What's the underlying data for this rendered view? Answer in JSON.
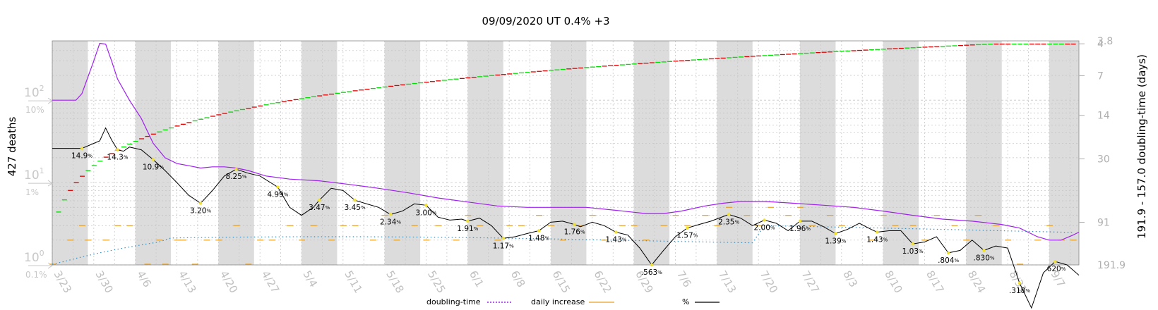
{
  "chart_data": {
    "type": "line",
    "title": "09/09/2020 UT 0.4% +3",
    "ylabel_left": "427 deaths",
    "ylabel_right": "191.9 - 157.0 doubling-time (days)",
    "left_ticks": [
      {
        "label": "10⁰",
        "value": 1
      },
      {
        "label": "10¹",
        "value": 10
      },
      {
        "label": "10²",
        "value": 100
      }
    ],
    "left_pct_ticks": [
      {
        "label": "0.1%",
        "value": 1
      },
      {
        "label": "1%",
        "value": 10
      },
      {
        "label": "10%",
        "value": 100
      }
    ],
    "right_ticks": [
      {
        "label": "3.8",
        "value": 3.8
      },
      {
        "label": "4",
        "value": 4
      },
      {
        "label": "7",
        "value": 7
      },
      {
        "label": "14",
        "value": 14
      },
      {
        "label": "30",
        "value": 30
      },
      {
        "label": "91",
        "value": 91
      },
      {
        "label": "191.9",
        "value": 191.9
      }
    ],
    "x_ticks": [
      "3/23",
      "3/30",
      "4/6",
      "4/13",
      "4/20",
      "4/27",
      "5/4",
      "5/11",
      "5/18",
      "5/25",
      "6/1",
      "6/8",
      "6/15",
      "6/22",
      "6/29",
      "7/6",
      "7/13",
      "7/20",
      "7/27",
      "8/3",
      "8/10",
      "8/17",
      "8/24",
      "8/31",
      "9/7"
    ],
    "pct_labels": [
      {
        "day": 5,
        "label": "14.9",
        "y": 26.0
      },
      {
        "day": 11,
        "label": "14.3",
        "y": 25.0
      },
      {
        "day": 17,
        "label": "10.9",
        "y": 19.0
      },
      {
        "day": 25,
        "label": "3.20",
        "y": 5.6
      },
      {
        "day": 31,
        "label": "8.25",
        "y": 14.5
      },
      {
        "day": 38,
        "label": "4.99",
        "y": 8.8
      },
      {
        "day": 45,
        "label": "3.47",
        "y": 6.1
      },
      {
        "day": 51,
        "label": "3.45",
        "y": 6.1
      },
      {
        "day": 57,
        "label": "2.34",
        "y": 4.1
      },
      {
        "day": 63,
        "label": "3.00",
        "y": 5.3
      },
      {
        "day": 70,
        "label": "1.91",
        "y": 3.4
      },
      {
        "day": 76,
        "label": "1.17",
        "y": 2.1
      },
      {
        "day": 82,
        "label": "1.48",
        "y": 2.6
      },
      {
        "day": 88,
        "label": "1.76",
        "y": 3.1
      },
      {
        "day": 95,
        "label": "1.43",
        "y": 2.5
      },
      {
        "day": 101,
        "label": ".563",
        "y": 1.0
      },
      {
        "day": 107,
        "label": "1.57",
        "y": 2.8
      },
      {
        "day": 114,
        "label": "2.35",
        "y": 4.1
      },
      {
        "day": 120,
        "label": "2.00",
        "y": 3.5
      },
      {
        "day": 126,
        "label": "1.96",
        "y": 3.4
      },
      {
        "day": 132,
        "label": "1.39",
        "y": 2.4
      },
      {
        "day": 139,
        "label": "1.43",
        "y": 2.5
      },
      {
        "day": 145,
        "label": "1.03",
        "y": 1.8
      },
      {
        "day": 151,
        "label": ".804",
        "y": 1.4
      },
      {
        "day": 157,
        "label": ".830",
        "y": 1.5
      },
      {
        "day": 163,
        "label": ".318",
        "y": 0.6
      },
      {
        "day": 169,
        "label": ".620",
        "y": 1.1
      }
    ],
    "pct_line": [
      [
        0,
        26
      ],
      [
        5,
        26
      ],
      [
        8,
        32
      ],
      [
        9,
        46
      ],
      [
        10,
        33
      ],
      [
        11,
        25
      ],
      [
        12,
        24
      ],
      [
        13,
        27
      ],
      [
        14,
        26
      ],
      [
        15,
        25
      ],
      [
        17,
        19
      ],
      [
        19,
        14
      ],
      [
        21,
        10
      ],
      [
        23,
        7
      ],
      [
        25,
        5.6
      ],
      [
        27,
        8
      ],
      [
        29,
        12
      ],
      [
        31,
        14.5
      ],
      [
        33,
        13
      ],
      [
        35,
        12
      ],
      [
        38,
        8.8
      ],
      [
        40,
        5
      ],
      [
        42,
        4
      ],
      [
        44,
        5
      ],
      [
        45,
        6.1
      ],
      [
        47,
        8.5
      ],
      [
        49,
        8
      ],
      [
        51,
        6.1
      ],
      [
        53,
        5.5
      ],
      [
        55,
        5
      ],
      [
        57,
        4.1
      ],
      [
        59,
        4.5
      ],
      [
        61,
        5.5
      ],
      [
        63,
        5.3
      ],
      [
        65,
        3.8
      ],
      [
        67,
        3.5
      ],
      [
        69,
        3.6
      ],
      [
        70,
        3.4
      ],
      [
        72,
        3.7
      ],
      [
        74,
        3.0
      ],
      [
        76,
        2.1
      ],
      [
        78,
        2.2
      ],
      [
        80,
        2.4
      ],
      [
        82,
        2.6
      ],
      [
        84,
        3.3
      ],
      [
        86,
        3.4
      ],
      [
        88,
        3.1
      ],
      [
        89,
        2.9
      ],
      [
        91,
        3.3
      ],
      [
        93,
        3.0
      ],
      [
        95,
        2.5
      ],
      [
        97,
        2.3
      ],
      [
        99,
        1.6
      ],
      [
        101,
        1.0
      ],
      [
        103,
        1.5
      ],
      [
        105,
        2.2
      ],
      [
        107,
        2.8
      ],
      [
        109,
        3.1
      ],
      [
        111,
        3.4
      ],
      [
        114,
        4.1
      ],
      [
        116,
        3.7
      ],
      [
        118,
        3.0
      ],
      [
        120,
        3.5
      ],
      [
        122,
        3.2
      ],
      [
        124,
        2.6
      ],
      [
        126,
        3.4
      ],
      [
        128,
        3.4
      ],
      [
        130,
        2.9
      ],
      [
        132,
        2.4
      ],
      [
        134,
        2.7
      ],
      [
        136,
        3.2
      ],
      [
        138,
        2.7
      ],
      [
        139,
        2.5
      ],
      [
        141,
        2.6
      ],
      [
        143,
        2.6
      ],
      [
        145,
        1.8
      ],
      [
        147,
        1.9
      ],
      [
        149,
        2.2
      ],
      [
        151,
        1.4
      ],
      [
        153,
        1.5
      ],
      [
        155,
        2.0
      ],
      [
        157,
        1.5
      ],
      [
        159,
        1.7
      ],
      [
        161,
        1.6
      ],
      [
        163,
        0.6
      ],
      [
        165,
        0.3
      ],
      [
        167,
        0.8
      ],
      [
        169,
        1.1
      ],
      [
        171,
        1.0
      ],
      [
        173,
        0.75
      ]
    ],
    "doubling_time": [
      [
        0,
        100
      ],
      [
        4,
        100
      ],
      [
        5,
        120
      ],
      [
        7,
        300
      ],
      [
        8,
        490
      ],
      [
        9,
        480
      ],
      [
        10,
        300
      ],
      [
        11,
        180
      ],
      [
        13,
        100
      ],
      [
        15,
        60
      ],
      [
        17,
        30
      ],
      [
        19,
        20
      ],
      [
        21,
        17
      ],
      [
        23,
        16
      ],
      [
        25,
        15
      ],
      [
        27,
        15.5
      ],
      [
        29,
        15.5
      ],
      [
        31,
        15
      ],
      [
        33,
        14
      ],
      [
        36,
        12
      ],
      [
        40,
        11
      ],
      [
        45,
        10.5
      ],
      [
        50,
        9.5
      ],
      [
        55,
        8.5
      ],
      [
        60,
        7.5
      ],
      [
        65,
        6.5
      ],
      [
        70,
        5.8
      ],
      [
        75,
        5.2
      ],
      [
        80,
        5.0
      ],
      [
        85,
        5.0
      ],
      [
        90,
        5.0
      ],
      [
        95,
        4.6
      ],
      [
        100,
        4.2
      ],
      [
        103,
        4.2
      ],
      [
        106,
        4.5
      ],
      [
        110,
        5.2
      ],
      [
        113,
        5.6
      ],
      [
        116,
        5.9
      ],
      [
        120,
        5.9
      ],
      [
        125,
        5.6
      ],
      [
        130,
        5.3
      ],
      [
        135,
        5.0
      ],
      [
        140,
        4.5
      ],
      [
        145,
        4.0
      ],
      [
        150,
        3.6
      ],
      [
        155,
        3.4
      ],
      [
        160,
        3.1
      ],
      [
        163,
        2.8
      ],
      [
        166,
        2.2
      ],
      [
        168,
        2.0
      ],
      [
        170,
        2.0
      ],
      [
        172,
        2.3
      ],
      [
        173,
        2.5
      ]
    ],
    "daily_increase": [
      [
        0,
        1
      ],
      [
        3,
        2
      ],
      [
        5,
        3
      ],
      [
        6,
        2
      ],
      [
        9,
        2
      ],
      [
        11,
        3
      ],
      [
        13,
        3
      ],
      [
        16,
        1
      ],
      [
        18,
        2
      ],
      [
        19,
        1
      ],
      [
        21,
        2
      ],
      [
        22,
        2
      ],
      [
        24,
        1
      ],
      [
        26,
        2
      ],
      [
        28,
        2
      ],
      [
        31,
        3
      ],
      [
        33,
        1
      ],
      [
        35,
        2
      ],
      [
        37,
        2
      ],
      [
        40,
        3
      ],
      [
        42,
        2
      ],
      [
        44,
        3
      ],
      [
        47,
        2
      ],
      [
        49,
        3
      ],
      [
        51,
        3
      ],
      [
        54,
        2
      ],
      [
        56,
        4
      ],
      [
        58,
        2
      ],
      [
        61,
        3
      ],
      [
        63,
        2
      ],
      [
        65,
        3
      ],
      [
        68,
        2
      ],
      [
        70,
        4
      ],
      [
        72,
        3
      ],
      [
        75,
        2
      ],
      [
        77,
        3
      ],
      [
        79,
        3
      ],
      [
        82,
        4
      ],
      [
        84,
        3
      ],
      [
        86,
        2
      ],
      [
        89,
        3
      ],
      [
        91,
        4
      ],
      [
        93,
        2
      ],
      [
        96,
        3
      ],
      [
        98,
        3
      ],
      [
        100,
        2
      ],
      [
        103,
        3
      ],
      [
        105,
        4
      ],
      [
        107,
        3
      ],
      [
        110,
        4
      ],
      [
        112,
        3
      ],
      [
        114,
        5
      ],
      [
        117,
        4
      ],
      [
        119,
        3
      ],
      [
        121,
        5
      ],
      [
        124,
        4
      ],
      [
        126,
        5
      ],
      [
        128,
        3
      ],
      [
        131,
        4
      ],
      [
        133,
        3
      ],
      [
        135,
        5
      ],
      [
        138,
        2
      ],
      [
        140,
        4
      ],
      [
        142,
        3
      ],
      [
        145,
        3
      ],
      [
        147,
        2
      ],
      [
        149,
        4
      ],
      [
        152,
        3
      ],
      [
        154,
        2
      ],
      [
        156,
        4
      ],
      [
        159,
        3
      ],
      [
        161,
        2
      ],
      [
        163,
        1
      ],
      [
        166,
        2
      ],
      [
        168,
        3
      ],
      [
        170,
        2
      ],
      [
        172,
        2
      ]
    ],
    "series": [
      {
        "name": "doubling-time",
        "style": "dotted",
        "color": "#a020f0"
      },
      {
        "name": "daily increase",
        "style": "dash",
        "color": "#e8a020"
      },
      {
        "name": "%",
        "style": "solid",
        "color": "#000000"
      }
    ],
    "colors": {
      "green": "#00dd00",
      "red": "#dd0000",
      "purple": "#a020f0",
      "blue": "#3a8fc0",
      "orange": "#e8a020",
      "yellow": "#f0e030"
    }
  }
}
